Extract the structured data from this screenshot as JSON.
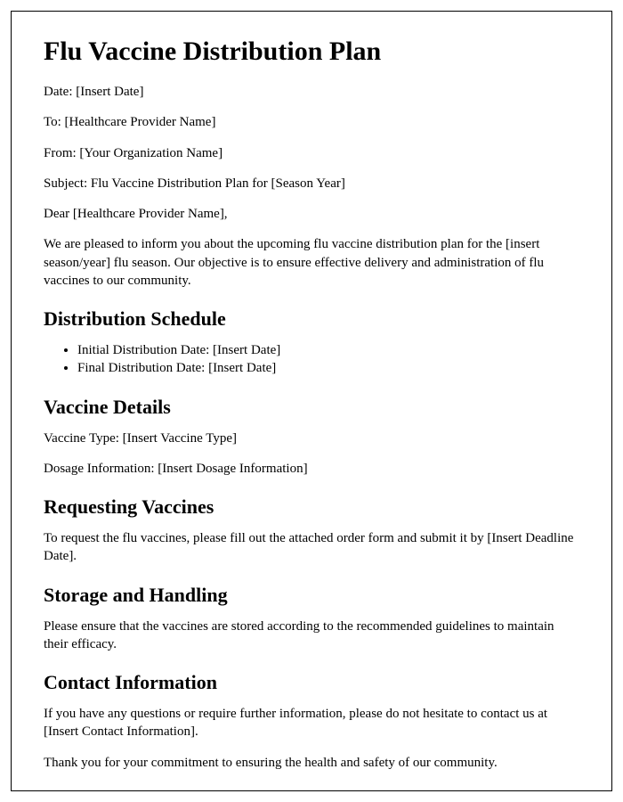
{
  "title": "Flu Vaccine Distribution Plan",
  "meta": {
    "date_label": "Date: [Insert Date]",
    "to_label": "To: [Healthcare Provider Name]",
    "from_label": "From: [Your Organization Name]",
    "subject_label": "Subject: Flu Vaccine Distribution Plan for [Season Year]"
  },
  "salutation": "Dear [Healthcare Provider Name],",
  "intro": "We are pleased to inform you about the upcoming flu vaccine distribution plan for the [insert season/year] flu season. Our objective is to ensure effective delivery and administration of flu vaccines to our community.",
  "sections": {
    "schedule": {
      "heading": "Distribution Schedule",
      "items": [
        "Initial Distribution Date: [Insert Date]",
        "Final Distribution Date: [Insert Date]"
      ]
    },
    "details": {
      "heading": "Vaccine Details",
      "type": "Vaccine Type: [Insert Vaccine Type]",
      "dosage": "Dosage Information: [Insert Dosage Information]"
    },
    "requesting": {
      "heading": "Requesting Vaccines",
      "body": "To request the flu vaccines, please fill out the attached order form and submit it by [Insert Deadline Date]."
    },
    "storage": {
      "heading": "Storage and Handling",
      "body": "Please ensure that the vaccines are stored according to the recommended guidelines to maintain their efficacy."
    },
    "contact": {
      "heading": "Contact Information",
      "body": "If you have any questions or require further information, please do not hesitate to contact us at [Insert Contact Information]."
    }
  },
  "closing": "Thank you for your commitment to ensuring the health and safety of our community."
}
